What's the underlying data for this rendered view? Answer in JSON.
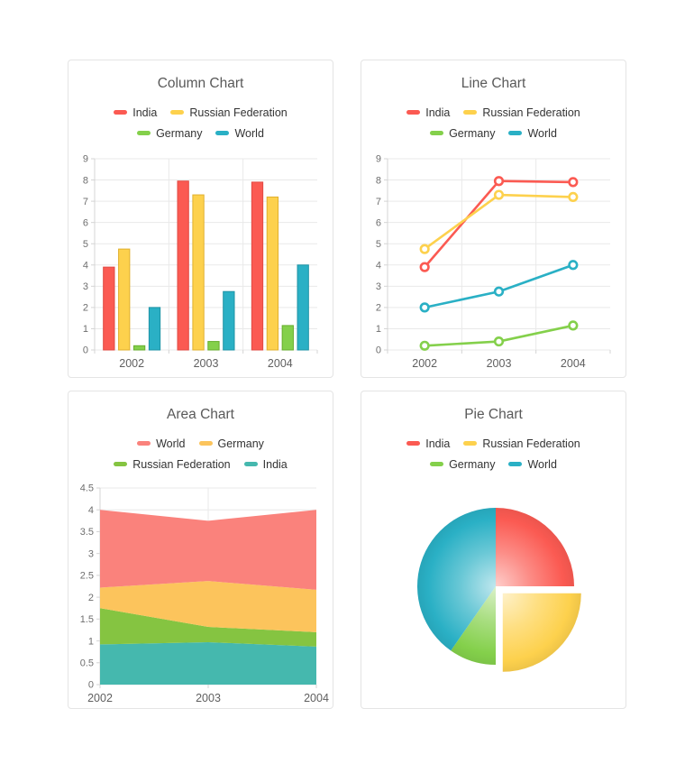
{
  "page": {
    "background": "#ffffff"
  },
  "theme": {
    "grid_color": "#e9e9e9",
    "axis_color": "#d4d4d4",
    "tick_label_color": "#6e6e6e",
    "category_label_color": "#5f5f5f",
    "title_color": "#595959",
    "legend_text_color": "#333333",
    "card_border_color": "#e4e4e4"
  },
  "chart_data": [
    {
      "type": "bar",
      "title": "Column Chart",
      "categories": [
        "2002",
        "2003",
        "2004"
      ],
      "series": [
        {
          "name": "India",
          "color": "#fb5a52",
          "stroke": "#e04a43",
          "values": [
            3.9,
            7.95,
            7.9
          ]
        },
        {
          "name": "Russian Federation",
          "color": "#fdd14d",
          "stroke": "#e0b02e",
          "values": [
            4.75,
            7.3,
            7.2
          ]
        },
        {
          "name": "Germany",
          "color": "#84d04b",
          "stroke": "#66ae2c",
          "values": [
            0.2,
            0.4,
            1.15
          ]
        },
        {
          "name": "World",
          "color": "#2ab0c5",
          "stroke": "#1e93a5",
          "values": [
            2.0,
            2.75,
            4.0
          ]
        }
      ],
      "legend": [
        {
          "label": "India",
          "color": "#fb5a52"
        },
        {
          "label": "Russian Federation",
          "color": "#fdd14d"
        },
        {
          "label": "Germany",
          "color": "#84d04b"
        },
        {
          "label": "World",
          "color": "#2ab0c5"
        }
      ],
      "ylim": [
        0,
        9
      ],
      "ystep": 1,
      "yticks": [
        "0",
        "1",
        "2",
        "3",
        "4",
        "5",
        "6",
        "7",
        "8",
        "9"
      ],
      "grid": true,
      "legend_position": "top"
    },
    {
      "type": "line",
      "title": "Line Chart",
      "categories": [
        "2002",
        "2003",
        "2004"
      ],
      "series": [
        {
          "name": "India",
          "color": "#fb5a52",
          "values": [
            3.9,
            7.95,
            7.9
          ]
        },
        {
          "name": "Russian Federation",
          "color": "#fdd14d",
          "values": [
            4.75,
            7.3,
            7.2
          ]
        },
        {
          "name": "Germany",
          "color": "#84d04b",
          "values": [
            0.2,
            0.4,
            1.15
          ]
        },
        {
          "name": "World",
          "color": "#2ab0c5",
          "values": [
            2.0,
            2.75,
            4.0
          ]
        }
      ],
      "legend": [
        {
          "label": "India",
          "color": "#fb5a52"
        },
        {
          "label": "Russian Federation",
          "color": "#fdd14d"
        },
        {
          "label": "Germany",
          "color": "#84d04b"
        },
        {
          "label": "World",
          "color": "#2ab0c5"
        }
      ],
      "ylim": [
        0,
        9
      ],
      "ystep": 1,
      "yticks": [
        "0",
        "1",
        "2",
        "3",
        "4",
        "5",
        "6",
        "7",
        "8",
        "9"
      ],
      "grid": true,
      "legend_position": "top",
      "marker": "open-circle"
    },
    {
      "type": "area",
      "title": "Area Chart",
      "categories": [
        "2002",
        "2003",
        "2004"
      ],
      "series": [
        {
          "name": "India",
          "color": "#45b8ae",
          "values": [
            0.92,
            0.97,
            0.87
          ]
        },
        {
          "name": "Russian Federation",
          "color": "#85c441",
          "values": [
            0.83,
            0.35,
            0.33
          ]
        },
        {
          "name": "Germany",
          "color": "#fcc45c",
          "values": [
            0.47,
            1.05,
            0.97
          ]
        },
        {
          "name": "World",
          "color": "#fa827c",
          "values": [
            1.78,
            1.38,
            1.83
          ]
        }
      ],
      "stacked": true,
      "legend": [
        {
          "label": "World",
          "color": "#fa827c"
        },
        {
          "label": "Germany",
          "color": "#fcc45c"
        },
        {
          "label": "Russian Federation",
          "color": "#85c441"
        },
        {
          "label": "India",
          "color": "#45b8ae"
        }
      ],
      "ylim": [
        0,
        4.5
      ],
      "ystep": 0.5,
      "yticks": [
        "0",
        "0.5",
        "1",
        "1.5",
        "2",
        "2.5",
        "3",
        "3.5",
        "4",
        "4.5"
      ],
      "grid": true,
      "legend_position": "top"
    },
    {
      "type": "pie",
      "title": "Pie Chart",
      "slices": [
        {
          "name": "India",
          "color": "#fb5a52",
          "value": 25,
          "exploded": false
        },
        {
          "name": "Russian Federation",
          "color": "#fdd14d",
          "value": 25,
          "exploded": true
        },
        {
          "name": "Germany",
          "color": "#84d04b",
          "value": 9.7,
          "exploded": false
        },
        {
          "name": "World",
          "color": "#2ab0c5",
          "value": 40.3,
          "exploded": false
        }
      ],
      "legend": [
        {
          "label": "India",
          "color": "#fb5a52"
        },
        {
          "label": "Russian Federation",
          "color": "#fdd14d"
        },
        {
          "label": "Germany",
          "color": "#84d04b"
        },
        {
          "label": "World",
          "color": "#2ab0c5"
        }
      ],
      "start_angle_deg": 0,
      "direction": "clockwise",
      "shading": "radial-gradient"
    }
  ]
}
